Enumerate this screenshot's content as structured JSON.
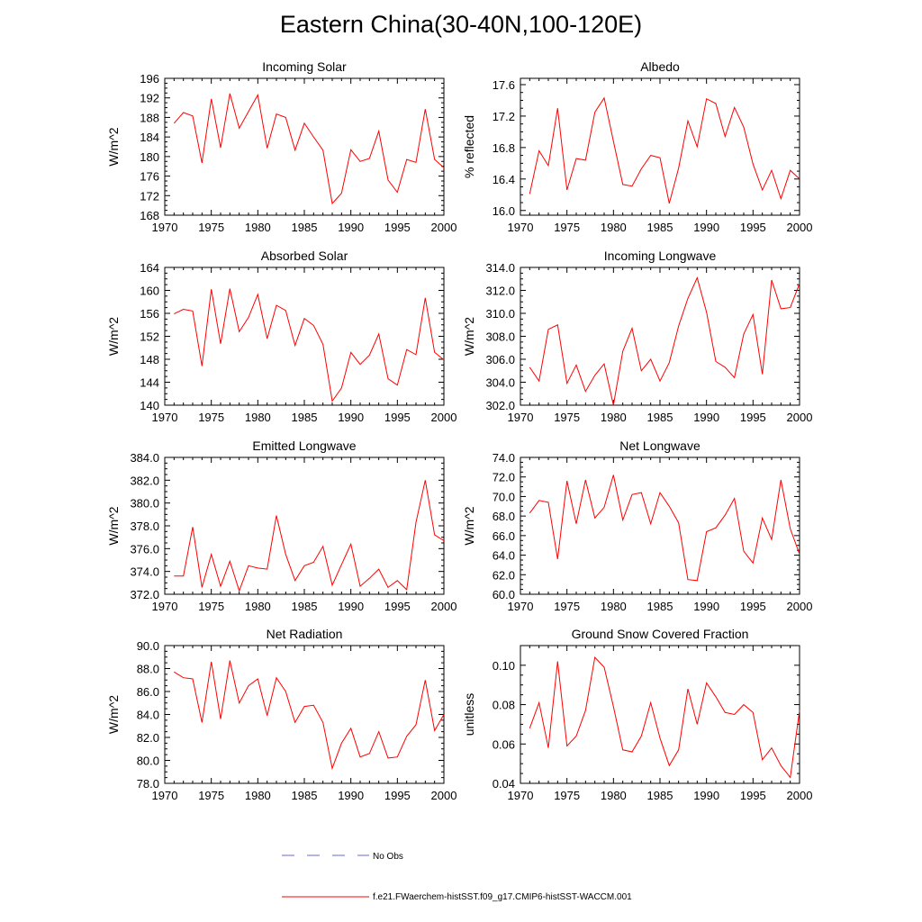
{
  "title": "Eastern China(30-40N,100-120E)",
  "colors": {
    "series": "#ff0000",
    "obs": "#6a6acd",
    "axis": "#000000"
  },
  "legend": {
    "obs_label": "No Obs",
    "model_label": "f.e21.FWaerchem-histSST.f09_g17.CMIP6-histSST-WACCM.001"
  },
  "chart_data": [
    {
      "type": "line",
      "title": "Incoming Solar",
      "ylabel": "W/m^2",
      "xlim": [
        1970,
        2000
      ],
      "ylim": [
        168,
        196
      ],
      "yticks": [
        "168",
        "172",
        "176",
        "180",
        "184",
        "188",
        "192",
        "196"
      ],
      "xticks": [
        "1970",
        "1975",
        "1980",
        "1985",
        "1990",
        "1995",
        "2000"
      ],
      "x": [
        1971,
        1972,
        1973,
        1974,
        1975,
        1976,
        1977,
        1978,
        1979,
        1980,
        1981,
        1982,
        1983,
        1984,
        1985,
        1986,
        1987,
        1988,
        1989,
        1990,
        1991,
        1992,
        1993,
        1994,
        1995,
        1996,
        1997,
        1998,
        1999,
        2000
      ],
      "y": [
        186.8,
        189.0,
        188.3,
        178.7,
        191.8,
        181.8,
        192.9,
        185.8,
        189.2,
        192.6,
        181.7,
        188.7,
        188.0,
        181.3,
        186.8,
        184.0,
        181.3,
        170.4,
        172.5,
        181.4,
        179.0,
        179.6,
        185.2,
        175.2,
        172.7,
        179.4,
        178.8,
        189.7,
        179.4,
        177.7
      ]
    },
    {
      "type": "line",
      "title": "Albedo",
      "ylabel": "% reflected",
      "xlim": [
        1970,
        2000
      ],
      "ylim": [
        15.94,
        17.68
      ],
      "yticks": [
        "16.0",
        "16.4",
        "16.8",
        "17.2",
        "17.6"
      ],
      "xticks": [
        "1970",
        "1975",
        "1980",
        "1985",
        "1990",
        "1995",
        "2000"
      ],
      "x": [
        1971,
        1972,
        1973,
        1974,
        1975,
        1976,
        1977,
        1978,
        1979,
        1980,
        1981,
        1982,
        1983,
        1984,
        1985,
        1986,
        1987,
        1988,
        1989,
        1990,
        1991,
        1992,
        1993,
        1994,
        1995,
        1996,
        1997,
        1998,
        1999,
        2000
      ],
      "y": [
        16.21,
        16.76,
        16.57,
        17.3,
        16.26,
        16.66,
        16.64,
        17.25,
        17.43,
        16.88,
        16.33,
        16.31,
        16.53,
        16.7,
        16.67,
        16.09,
        16.54,
        17.14,
        16.81,
        17.42,
        17.36,
        16.94,
        17.31,
        17.06,
        16.59,
        16.26,
        16.51,
        16.15,
        16.51,
        16.4
      ]
    },
    {
      "type": "line",
      "title": "Absorbed Solar",
      "ylabel": "W/m^2",
      "xlim": [
        1970,
        2000
      ],
      "ylim": [
        140,
        164
      ],
      "yticks": [
        "140",
        "144",
        "148",
        "152",
        "156",
        "160",
        "164"
      ],
      "xticks": [
        "1970",
        "1975",
        "1980",
        "1985",
        "1990",
        "1995",
        "2000"
      ],
      "x": [
        1971,
        1972,
        1973,
        1974,
        1975,
        1976,
        1977,
        1978,
        1979,
        1980,
        1981,
        1982,
        1983,
        1984,
        1985,
        1986,
        1987,
        1988,
        1989,
        1990,
        1991,
        1992,
        1993,
        1994,
        1995,
        1996,
        1997,
        1998,
        1999,
        2000
      ],
      "y": [
        155.9,
        156.7,
        156.4,
        146.8,
        160.2,
        150.7,
        160.3,
        152.8,
        155.3,
        159.3,
        151.6,
        157.4,
        156.5,
        150.4,
        155.1,
        153.9,
        150.6,
        140.7,
        143.0,
        149.2,
        147.1,
        148.7,
        152.4,
        144.6,
        143.5,
        149.7,
        148.8,
        158.7,
        149.2,
        147.9
      ]
    },
    {
      "type": "line",
      "title": "Incoming Longwave",
      "ylabel": "W/m^2",
      "xlim": [
        1970,
        2000
      ],
      "ylim": [
        302,
        314
      ],
      "yticks": [
        "302.0",
        "304.0",
        "306.0",
        "308.0",
        "310.0",
        "312.0",
        "314.0"
      ],
      "xticks": [
        "1970",
        "1975",
        "1980",
        "1985",
        "1990",
        "1995",
        "2000"
      ],
      "x": [
        1971,
        1972,
        1973,
        1974,
        1975,
        1976,
        1977,
        1978,
        1979,
        1980,
        1981,
        1982,
        1983,
        1984,
        1985,
        1986,
        1987,
        1988,
        1989,
        1990,
        1991,
        1992,
        1993,
        1994,
        1995,
        1996,
        1997,
        1998,
        1999,
        2000
      ],
      "y": [
        305.3,
        304.1,
        308.6,
        309.0,
        303.9,
        305.5,
        303.2,
        304.6,
        305.6,
        302.0,
        306.7,
        308.7,
        305.0,
        306.0,
        304.1,
        305.7,
        308.9,
        311.3,
        313.1,
        310.1,
        305.8,
        305.3,
        304.4,
        308.2,
        309.9,
        304.7,
        312.9,
        310.4,
        310.5,
        312.6
      ]
    },
    {
      "type": "line",
      "title": "Emitted Longwave",
      "ylabel": "W/m^2",
      "xlim": [
        1970,
        2000
      ],
      "ylim": [
        372,
        384
      ],
      "yticks": [
        "372.0",
        "374.0",
        "376.0",
        "378.0",
        "380.0",
        "382.0",
        "384.0"
      ],
      "xticks": [
        "1970",
        "1975",
        "1980",
        "1985",
        "1990",
        "1995",
        "2000"
      ],
      "x": [
        1971,
        1972,
        1973,
        1974,
        1975,
        1976,
        1977,
        1978,
        1979,
        1980,
        1981,
        1982,
        1983,
        1984,
        1985,
        1986,
        1987,
        1988,
        1989,
        1990,
        1991,
        1992,
        1993,
        1994,
        1995,
        1996,
        1997,
        1998,
        1999,
        2000
      ],
      "y": [
        373.6,
        373.6,
        377.9,
        372.6,
        375.5,
        372.7,
        374.9,
        372.3,
        374.5,
        374.3,
        374.2,
        378.9,
        375.5,
        373.2,
        374.5,
        374.8,
        376.2,
        372.8,
        374.6,
        376.4,
        372.7,
        373.4,
        374.2,
        372.6,
        373.2,
        372.4,
        378.3,
        382.0,
        377.2,
        376.7
      ]
    },
    {
      "type": "line",
      "title": "Net Longwave",
      "ylabel": "W/m^2",
      "xlim": [
        1970,
        2000
      ],
      "ylim": [
        60,
        74
      ],
      "yticks": [
        "60.0",
        "62.0",
        "64.0",
        "66.0",
        "68.0",
        "70.0",
        "72.0",
        "74.0"
      ],
      "xticks": [
        "1970",
        "1975",
        "1980",
        "1985",
        "1990",
        "1995",
        "2000"
      ],
      "x": [
        1971,
        1972,
        1973,
        1974,
        1975,
        1976,
        1977,
        1978,
        1979,
        1980,
        1981,
        1982,
        1983,
        1984,
        1985,
        1986,
        1987,
        1988,
        1989,
        1990,
        1991,
        1992,
        1993,
        1994,
        1995,
        1996,
        1997,
        1998,
        1999,
        2000
      ],
      "y": [
        68.3,
        69.6,
        69.4,
        63.6,
        71.6,
        67.2,
        71.7,
        67.8,
        68.9,
        72.2,
        67.6,
        70.2,
        70.4,
        67.2,
        70.4,
        69.0,
        67.3,
        61.5,
        61.4,
        66.4,
        66.8,
        68.1,
        69.8,
        64.4,
        63.2,
        67.8,
        65.6,
        71.7,
        66.7,
        64.1
      ]
    },
    {
      "type": "line",
      "title": "Net Radiation",
      "ylabel": "W/m^2",
      "xlim": [
        1970,
        2000
      ],
      "ylim": [
        78,
        90
      ],
      "yticks": [
        "78.0",
        "80.0",
        "82.0",
        "84.0",
        "86.0",
        "88.0",
        "90.0"
      ],
      "xticks": [
        "1970",
        "1975",
        "1980",
        "1985",
        "1990",
        "1995",
        "2000"
      ],
      "x": [
        1971,
        1972,
        1973,
        1974,
        1975,
        1976,
        1977,
        1978,
        1979,
        1980,
        1981,
        1982,
        1983,
        1984,
        1985,
        1986,
        1987,
        1988,
        1989,
        1990,
        1991,
        1992,
        1993,
        1994,
        1995,
        1996,
        1997,
        1998,
        1999,
        2000
      ],
      "y": [
        87.7,
        87.2,
        87.1,
        83.3,
        88.6,
        83.6,
        88.7,
        85.0,
        86.5,
        87.1,
        83.9,
        87.2,
        86.0,
        83.3,
        84.7,
        84.8,
        83.3,
        79.3,
        81.5,
        82.8,
        80.3,
        80.6,
        82.5,
        80.2,
        80.3,
        82.1,
        83.1,
        87.0,
        82.6,
        84.0
      ]
    },
    {
      "type": "line",
      "title": "Ground Snow Covered Fraction",
      "ylabel": "unitless",
      "xlim": [
        1970,
        2000
      ],
      "ylim": [
        0.04,
        0.11
      ],
      "yticks": [
        "0.04",
        "0.06",
        "0.08",
        "0.10"
      ],
      "xticks": [
        "1970",
        "1975",
        "1980",
        "1985",
        "1990",
        "1995",
        "2000"
      ],
      "x": [
        1971,
        1972,
        1973,
        1974,
        1975,
        1976,
        1977,
        1978,
        1979,
        1980,
        1981,
        1982,
        1983,
        1984,
        1985,
        1986,
        1987,
        1988,
        1989,
        1990,
        1991,
        1992,
        1993,
        1994,
        1995,
        1996,
        1997,
        1998,
        1999,
        2000
      ],
      "y": [
        0.068,
        0.081,
        0.058,
        0.102,
        0.059,
        0.064,
        0.077,
        0.104,
        0.099,
        0.079,
        0.057,
        0.056,
        0.064,
        0.081,
        0.063,
        0.049,
        0.057,
        0.088,
        0.07,
        0.091,
        0.084,
        0.076,
        0.075,
        0.08,
        0.076,
        0.052,
        0.058,
        0.049,
        0.043,
        0.077
      ]
    }
  ]
}
